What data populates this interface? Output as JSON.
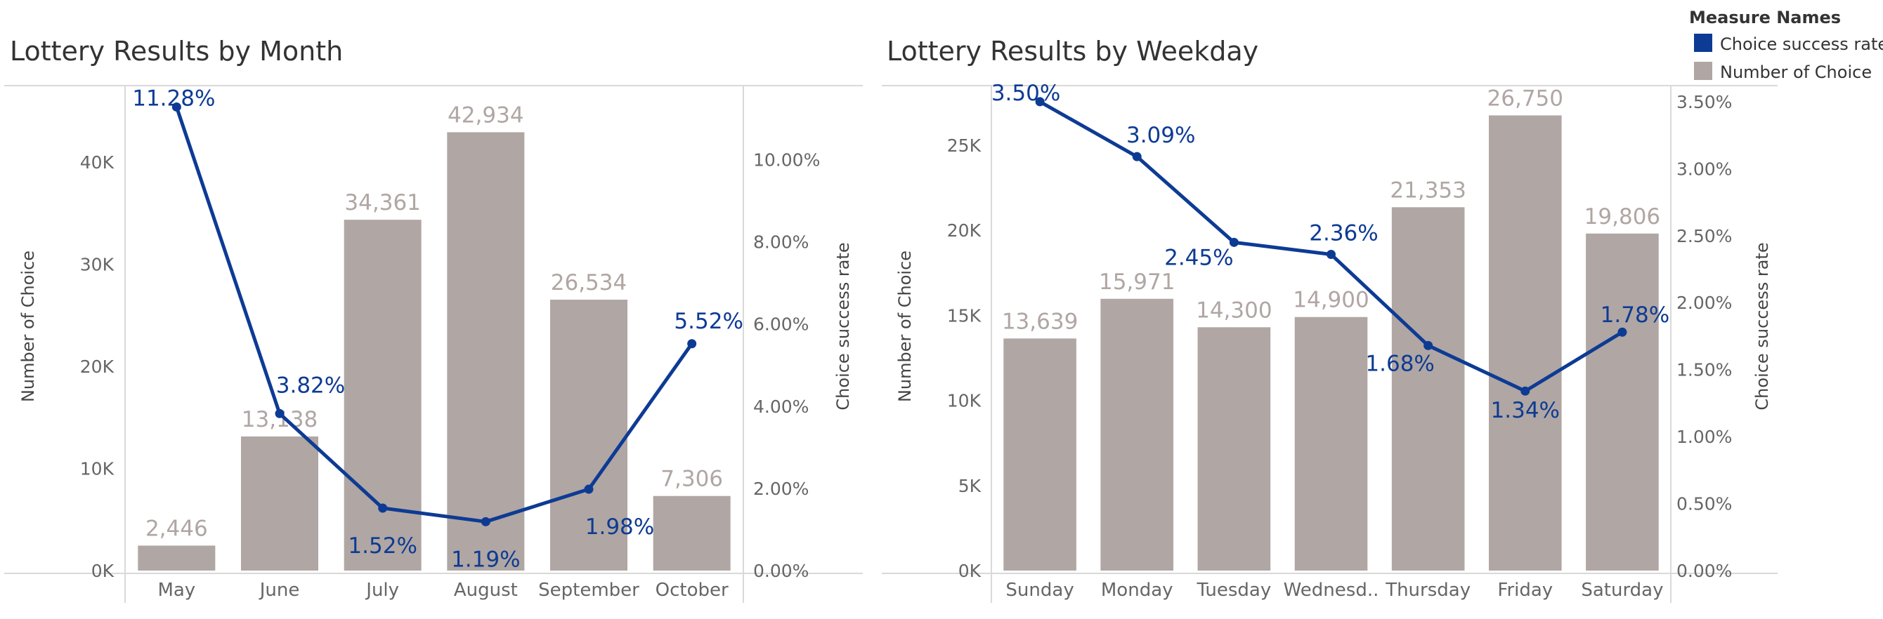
{
  "colors": {
    "success_rate": "#0d3b94",
    "choices": "#b0a6a3",
    "axis_text": "#666666",
    "title_text": "#333333",
    "grid_line": "#d9d9d9"
  },
  "legend": {
    "title": "Measure Names",
    "items": [
      {
        "label": "Choice success rate",
        "color": "#0d3b94"
      },
      {
        "label": "Number of Choice",
        "color": "#b0a6a3"
      }
    ]
  },
  "chart_data": [
    {
      "type": "bar",
      "title": "Lottery Results by Month",
      "xlabel": "",
      "ylabel": "Number of Choice",
      "y2label": "Choice success rate",
      "categories": [
        "May",
        "June",
        "July",
        "August",
        "September",
        "October"
      ],
      "ylim": [
        0,
        47500
      ],
      "yticks": [
        0,
        10000,
        20000,
        30000,
        40000
      ],
      "ytick_labels": [
        "0K",
        "10K",
        "20K",
        "30K",
        "40K"
      ],
      "y2lim": [
        0,
        11.8
      ],
      "y2ticks": [
        0,
        2,
        4,
        6,
        8,
        10
      ],
      "y2tick_labels": [
        "0.00%",
        "2.00%",
        "4.00%",
        "6.00%",
        "8.00%",
        "10.00%"
      ],
      "series": [
        {
          "name": "Number of Choice",
          "type": "bar",
          "values": [
            2446,
            13138,
            34361,
            42934,
            26534,
            7306
          ],
          "labels": [
            "2,446",
            "13,138",
            "34,361",
            "42,934",
            "26,534",
            "7,306"
          ]
        },
        {
          "name": "Choice success rate",
          "type": "line",
          "values": [
            11.28,
            3.82,
            1.52,
            1.19,
            1.98,
            5.52
          ],
          "labels": [
            "11.28%",
            "3.82%",
            "1.52%",
            "1.19%",
            "1.98%",
            "5.52%"
          ]
        }
      ]
    },
    {
      "type": "bar",
      "title": "Lottery Results by Weekday",
      "xlabel": "",
      "ylabel": "Number of Choice",
      "y2label": "Choice success rate",
      "categories": [
        "Sunday",
        "Monday",
        "Tuesday",
        "Wednesd..",
        "Thursday",
        "Friday",
        "Saturday"
      ],
      "ylim": [
        0,
        28500
      ],
      "yticks": [
        0,
        5000,
        10000,
        15000,
        20000,
        25000
      ],
      "ytick_labels": [
        "0K",
        "5K",
        "10K",
        "15K",
        "20K",
        "25K"
      ],
      "y2lim": [
        0,
        3.62
      ],
      "y2ticks": [
        0,
        0.5,
        1,
        1.5,
        2,
        2.5,
        3,
        3.5
      ],
      "y2tick_labels": [
        "0.00%",
        "0.50%",
        "1.00%",
        "1.50%",
        "2.00%",
        "2.50%",
        "3.00%",
        "3.50%"
      ],
      "series": [
        {
          "name": "Number of Choice",
          "type": "bar",
          "values": [
            13639,
            15971,
            14300,
            14900,
            21353,
            26750,
            19806
          ],
          "labels": [
            "13,639",
            "15,971",
            "14,300",
            "14,900",
            "21,353",
            "26,750",
            "19,806"
          ]
        },
        {
          "name": "Choice success rate",
          "type": "line",
          "values": [
            3.5,
            3.09,
            2.45,
            2.36,
            1.68,
            1.34,
            1.78
          ],
          "labels": [
            "3.50%",
            "3.09%",
            "2.45%",
            "2.36%",
            "1.68%",
            "1.34%",
            "1.78%"
          ]
        }
      ]
    }
  ]
}
